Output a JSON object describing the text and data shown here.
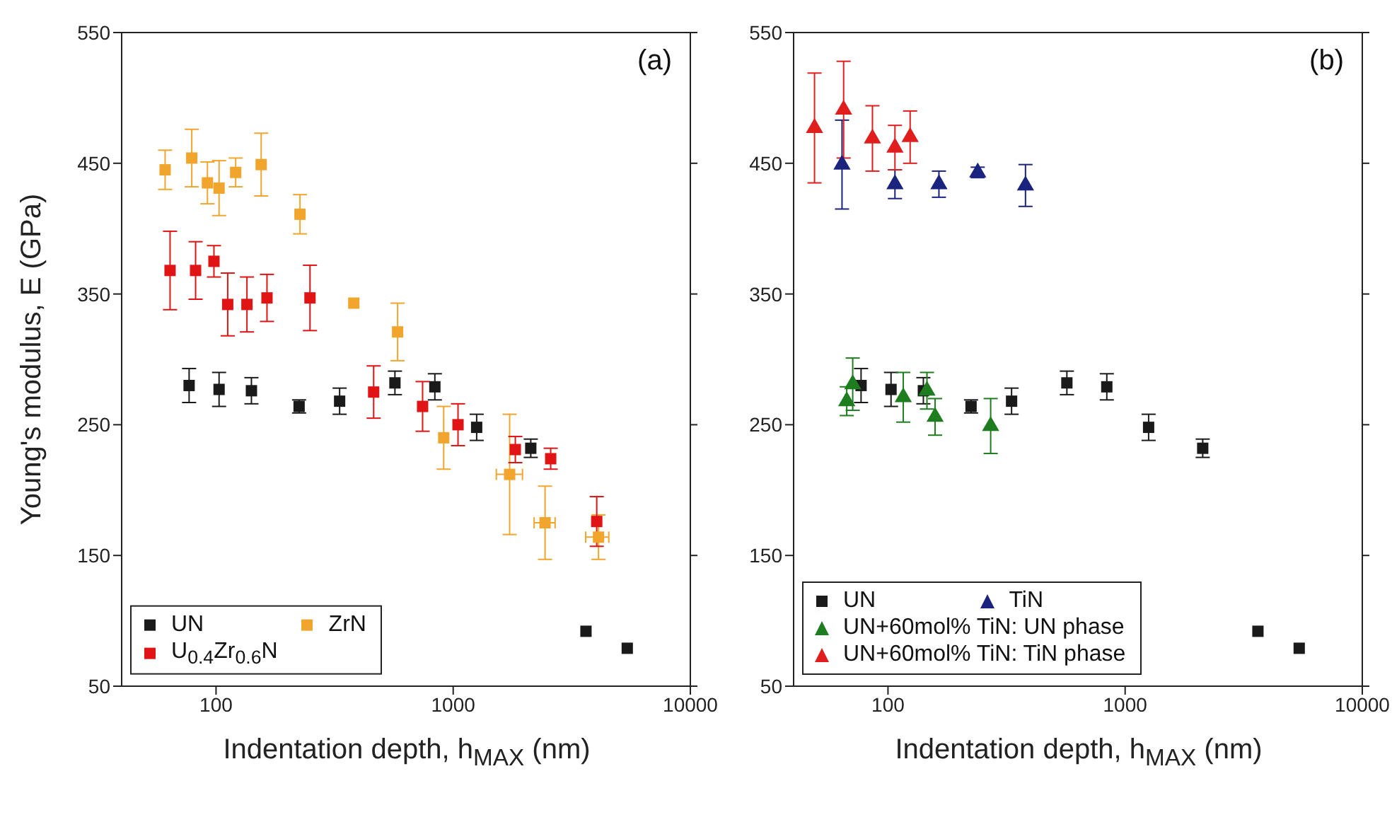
{
  "chart_data": [
    {
      "type": "scatter",
      "xlabel": "Indentation depth, h$_{MAX}$ (nm)",
      "ylabel": "Young's modulus, E (GPa)",
      "annotations": [
        "(a)"
      ],
      "log": "x",
      "xlim": [
        40,
        10000
      ],
      "xticks": [
        100,
        1000,
        10000
      ],
      "ylim": [
        50,
        550
      ],
      "yticks": [
        50,
        150,
        250,
        350,
        450,
        550
      ],
      "legend": "bottom left",
      "series": [
        {
          "name": "UN",
          "color": "#1a1a1a",
          "marker": "square",
          "x": [
            77,
            103,
            141,
            224,
            332,
            568,
            837,
            1256,
            2124,
            3630,
            5420
          ],
          "values": [
            280,
            277,
            276,
            264,
            268,
            282,
            279,
            248,
            232,
            92,
            79
          ],
          "errors": [
            13,
            13,
            10,
            5,
            10,
            9,
            10,
            10,
            7,
            null,
            null
          ]
        },
        {
          "name": "ZrN",
          "color": "#f2a52c",
          "marker": "square",
          "x": [
            61,
            79,
            92,
            103,
            121,
            155,
            226,
            381,
            583,
            912,
            1730,
            2440,
            4100
          ],
          "values": [
            445,
            454,
            435,
            431,
            443,
            449,
            411,
            343,
            321,
            240,
            212,
            175,
            164
          ],
          "errors": [
            15,
            22,
            16,
            21,
            11,
            24,
            15,
            null,
            22,
            24,
            46,
            28,
            17
          ],
          "xerrors": [
            null,
            null,
            null,
            null,
            null,
            null,
            null,
            null,
            null,
            null,
            [
              1520,
              1960
            ],
            [
              2195,
              2690
            ],
            [
              3620,
              4530
            ]
          ]
        },
        {
          "name": "U$_{0.4}$Zr$_{0.6}$N",
          "color": "#e01414",
          "marker": "square",
          "x": [
            64,
            82,
            98,
            112,
            135,
            164,
            249,
            462,
            743,
            1048,
            1828,
            2577,
            4030
          ],
          "values": [
            368,
            368,
            375,
            342,
            342,
            347,
            347,
            275,
            264,
            250,
            231,
            224,
            176
          ],
          "errors": [
            30,
            22,
            12,
            24,
            21,
            18,
            25,
            20,
            19,
            16,
            10,
            8,
            19
          ]
        }
      ]
    },
    {
      "type": "scatter",
      "xlabel": "Indentation depth, h$_{MAX}$ (nm)",
      "annotations": [
        "(b)"
      ],
      "log": "x",
      "xlim": [
        40,
        10000
      ],
      "xticks": [
        100,
        1000,
        10000
      ],
      "ylim": [
        50,
        550
      ],
      "yticks": [
        50,
        150,
        250,
        350,
        450,
        550
      ],
      "legend": "bottom left",
      "series": [
        {
          "name": "UN",
          "color": "#1a1a1a",
          "marker": "square",
          "x": [
            77,
            103,
            141,
            224,
            332,
            568,
            837,
            1256,
            2124,
            3630,
            5420
          ],
          "values": [
            280,
            277,
            276,
            264,
            268,
            282,
            279,
            248,
            232,
            92,
            79
          ],
          "errors": [
            13,
            13,
            10,
            5,
            10,
            9,
            10,
            10,
            7,
            null,
            null
          ]
        },
        {
          "name": "TiN",
          "color": "#1a237e",
          "marker": "triangle",
          "x": [
            64,
            107,
            164,
            239,
            380
          ],
          "values": [
            449,
            434,
            434,
            443,
            433
          ],
          "errors": [
            34,
            11,
            10,
            4,
            16
          ]
        },
        {
          "name": "UN+60mol% TiN: UN phase",
          "color": "#1e7d1e",
          "marker": "triangle",
          "x": [
            67,
            71,
            116,
            146,
            158,
            271
          ],
          "values": [
            268,
            281,
            271,
            276,
            256,
            249
          ],
          "errors": [
            11,
            20,
            19,
            14,
            14,
            21
          ]
        },
        {
          "name": "UN+60mol% TiN: TiN phase",
          "color": "#e01e1e",
          "marker": "triangle",
          "x": [
            49,
            65,
            86,
            107,
            124
          ],
          "values": [
            477,
            491,
            469,
            462,
            470
          ],
          "errors": [
            42,
            37,
            25,
            17,
            20
          ]
        }
      ]
    }
  ]
}
